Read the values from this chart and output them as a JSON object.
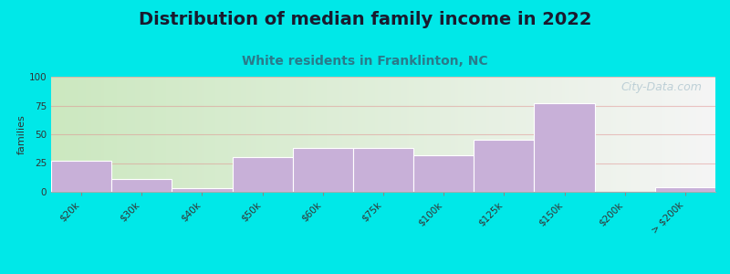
{
  "title": "Distribution of median family income in 2022",
  "subtitle": "White residents in Franklinton, NC",
  "watermark": "City-Data.com",
  "ylabel": "families",
  "categories": [
    "$20k",
    "$30k",
    "$40k",
    "$50k",
    "$60k",
    "$75k",
    "$100k",
    "$125k",
    "$150k",
    "$200k",
    "> $200k"
  ],
  "values": [
    27,
    11,
    3,
    30,
    38,
    38,
    32,
    45,
    77,
    0,
    4
  ],
  "bar_color": "#c8b0d8",
  "bar_edge_color": "#ffffff",
  "background_outer": "#00e8e8",
  "background_inner_left": "#cce8c0",
  "background_inner_right": "#f5f5f5",
  "title_fontsize": 14,
  "subtitle_fontsize": 10,
  "ylabel_fontsize": 8,
  "tick_fontsize": 7.5,
  "ylim": [
    0,
    100
  ],
  "yticks": [
    0,
    25,
    50,
    75,
    100
  ],
  "grid_color": "#e09090",
  "grid_alpha": 0.5,
  "watermark_color": "#b8ccd4",
  "watermark_fontsize": 9
}
